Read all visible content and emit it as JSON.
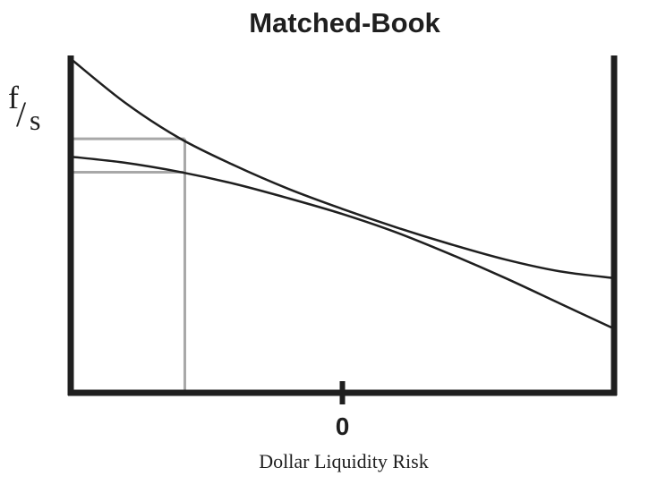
{
  "chart_data": {
    "type": "line",
    "title": "Matched-Book",
    "ylabel": {
      "numerator": "f",
      "separator": "/",
      "denominator": "s"
    },
    "xlabel": "Dollar Liquidity Risk",
    "xlim": [
      -1,
      1
    ],
    "ylim": [
      0,
      1
    ],
    "grid": false,
    "legend": "none",
    "x_ticks": [
      {
        "value": 0,
        "label": "0"
      }
    ],
    "series": [
      {
        "color": "#1f1f1f",
        "points": [
          [
            -1,
            0.99
          ],
          [
            -0.8,
            0.86
          ],
          [
            -0.6,
            0.755
          ],
          [
            -0.4,
            0.675
          ],
          [
            -0.2,
            0.605
          ],
          [
            0,
            0.545
          ],
          [
            0.2,
            0.49
          ],
          [
            0.4,
            0.44
          ],
          [
            0.6,
            0.395
          ],
          [
            0.8,
            0.36
          ],
          [
            1,
            0.34
          ]
        ]
      },
      {
        "color": "#1f1f1f",
        "points": [
          [
            -1,
            0.7
          ],
          [
            -0.8,
            0.682
          ],
          [
            -0.6,
            0.655
          ],
          [
            -0.4,
            0.62
          ],
          [
            -0.2,
            0.577
          ],
          [
            0,
            0.53
          ],
          [
            0.2,
            0.475
          ],
          [
            0.4,
            0.41
          ],
          [
            0.6,
            0.34
          ],
          [
            0.8,
            0.265
          ],
          [
            1,
            0.19
          ]
        ]
      }
    ],
    "guides": {
      "color": "#a8a8a8",
      "x": -0.58,
      "y_levels": [
        0.753,
        0.654
      ]
    }
  }
}
